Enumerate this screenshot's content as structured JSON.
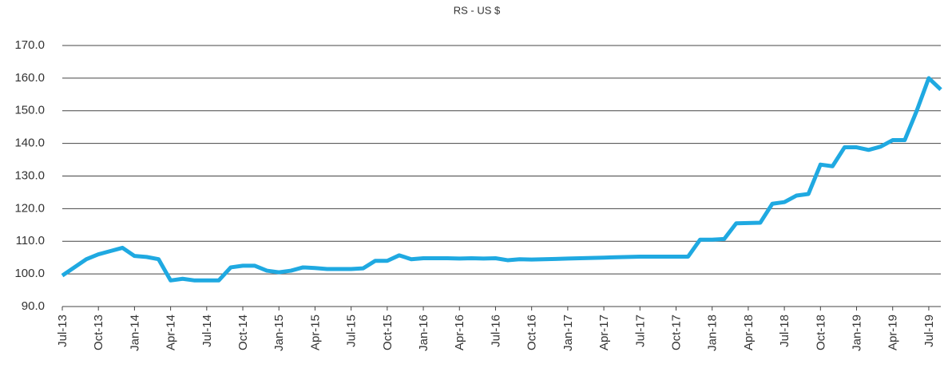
{
  "chart_data": {
    "type": "line",
    "title": "RS - US $",
    "x": [
      "2013-07",
      "2013-08",
      "2013-09",
      "2013-10",
      "2013-11",
      "2013-12",
      "2014-01",
      "2014-02",
      "2014-03",
      "2014-04",
      "2014-05",
      "2014-06",
      "2014-07",
      "2014-08",
      "2014-09",
      "2014-10",
      "2014-11",
      "2014-12",
      "2015-01",
      "2015-02",
      "2015-03",
      "2015-04",
      "2015-05",
      "2015-06",
      "2015-07",
      "2015-08",
      "2015-09",
      "2015-10",
      "2015-11",
      "2015-12",
      "2016-01",
      "2016-02",
      "2016-03",
      "2016-04",
      "2016-05",
      "2016-06",
      "2016-07",
      "2016-08",
      "2016-09",
      "2016-10",
      "2016-11",
      "2016-12",
      "2017-01",
      "2017-02",
      "2017-03",
      "2017-04",
      "2017-05",
      "2017-06",
      "2017-07",
      "2017-08",
      "2017-09",
      "2017-10",
      "2017-11",
      "2017-12",
      "2018-01",
      "2018-02",
      "2018-03",
      "2018-04",
      "2018-05",
      "2018-06",
      "2018-07",
      "2018-08",
      "2018-09",
      "2018-10",
      "2018-11",
      "2018-12",
      "2019-01",
      "2019-02",
      "2019-03",
      "2019-04",
      "2019-05",
      "2019-06",
      "2019-07",
      "2019-08"
    ],
    "series": [
      {
        "name": "RS - US $",
        "color": "#1fa9e1",
        "values": [
          99.5,
          102,
          104.5,
          106,
          107,
          108,
          105.5,
          105.2,
          104.5,
          98,
          98.5,
          98,
          98,
          98,
          102,
          102.5,
          102.5,
          101,
          100.5,
          101,
          102,
          101.8,
          101.5,
          101.5,
          101.5,
          101.7,
          104,
          104,
          105.7,
          104.5,
          104.8,
          104.8,
          104.8,
          104.7,
          104.8,
          104.7,
          104.8,
          104.2,
          104.5,
          104.4,
          104.5,
          104.6,
          104.7,
          104.8,
          104.9,
          105,
          105.1,
          105.2,
          105.3,
          105.3,
          105.3,
          105.3,
          105.3,
          110.5,
          110.5,
          110.7,
          115.5,
          115.6,
          115.7,
          121.5,
          122,
          124,
          124.5,
          133.5,
          133,
          138.8,
          138.8,
          138,
          139,
          141,
          141,
          150,
          160,
          156.5
        ]
      }
    ],
    "xlim": [
      "2013-07",
      "2019-08"
    ],
    "xticks": [
      {
        "value": "2013-07",
        "label": "Jul-13"
      },
      {
        "value": "2013-10",
        "label": "Oct-13"
      },
      {
        "value": "2014-01",
        "label": "Jan-14"
      },
      {
        "value": "2014-04",
        "label": "Apr-14"
      },
      {
        "value": "2014-07",
        "label": "Jul-14"
      },
      {
        "value": "2014-10",
        "label": "Oct-14"
      },
      {
        "value": "2015-01",
        "label": "Jan-15"
      },
      {
        "value": "2015-04",
        "label": "Apr-15"
      },
      {
        "value": "2015-07",
        "label": "Jul-15"
      },
      {
        "value": "2015-10",
        "label": "Oct-15"
      },
      {
        "value": "2016-01",
        "label": "Jan-16"
      },
      {
        "value": "2016-04",
        "label": "Apr-16"
      },
      {
        "value": "2016-07",
        "label": "Jul-16"
      },
      {
        "value": "2016-10",
        "label": "Oct-16"
      },
      {
        "value": "2017-01",
        "label": "Jan-17"
      },
      {
        "value": "2017-04",
        "label": "Apr-17"
      },
      {
        "value": "2017-07",
        "label": "Jul-17"
      },
      {
        "value": "2017-10",
        "label": "Oct-17"
      },
      {
        "value": "2018-01",
        "label": "Jan-18"
      },
      {
        "value": "2018-04",
        "label": "Apr-18"
      },
      {
        "value": "2018-07",
        "label": "Jul-18"
      },
      {
        "value": "2018-10",
        "label": "Oct-18"
      },
      {
        "value": "2019-01",
        "label": "Jan-19"
      },
      {
        "value": "2019-04",
        "label": "Apr-19"
      },
      {
        "value": "2019-07",
        "label": "Jul-19"
      }
    ],
    "ylim": [
      90,
      170
    ],
    "yticks": [
      {
        "value": 90,
        "label": "90.0"
      },
      {
        "value": 100,
        "label": "100.0"
      },
      {
        "value": 110,
        "label": "110.0"
      },
      {
        "value": 120,
        "label": "120.0"
      },
      {
        "value": 130,
        "label": "130.0"
      },
      {
        "value": 140,
        "label": "140.0"
      },
      {
        "value": 150,
        "label": "150.0"
      },
      {
        "value": 160,
        "label": "160.0"
      },
      {
        "value": 170,
        "label": "170.0"
      }
    ],
    "grid": true
  }
}
